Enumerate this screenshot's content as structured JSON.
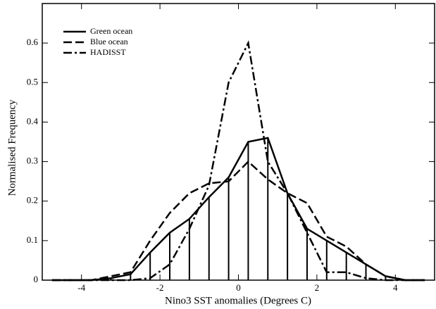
{
  "chart_data": {
    "type": "line",
    "xlabel": "Nino3 SST anomalies (Degrees C)",
    "ylabel": "Normalised Frequency",
    "x": [
      -4.75,
      -4.25,
      -3.75,
      -3.25,
      -2.75,
      -2.25,
      -1.75,
      -1.25,
      -0.75,
      -0.25,
      0.25,
      0.75,
      1.25,
      1.75,
      2.25,
      2.75,
      3.25,
      3.75,
      4.25,
      4.75
    ],
    "series": [
      {
        "name": "Green ocean",
        "color": "#000000",
        "dash": "solid",
        "stems": true,
        "values": [
          0,
          0,
          0,
          0.005,
          0.015,
          0.07,
          0.12,
          0.155,
          0.21,
          0.26,
          0.35,
          0.36,
          0.22,
          0.13,
          0.1,
          0.07,
          0.04,
          0.01,
          0,
          0
        ]
      },
      {
        "name": "Blue ocean",
        "color": "#000000",
        "dash": "dashed",
        "values": [
          0,
          0,
          0,
          0.01,
          0.02,
          0.1,
          0.17,
          0.22,
          0.245,
          0.25,
          0.3,
          0.255,
          0.22,
          0.195,
          0.11,
          0.085,
          0.04,
          0.01,
          0,
          0
        ]
      },
      {
        "name": "HADISST",
        "color": "#000000",
        "dash": "dashdot",
        "values": [
          0,
          0,
          0,
          0,
          0,
          0.005,
          0.04,
          0.13,
          0.24,
          0.5,
          0.6,
          0.3,
          0.22,
          0.12,
          0.02,
          0.02,
          0.005,
          0,
          0,
          0
        ]
      }
    ],
    "xlim": [
      -5,
      5
    ],
    "xticks": [
      -4,
      -2,
      0,
      2,
      4
    ],
    "ylim": [
      0,
      0.7
    ],
    "yticks": [
      0,
      0.1,
      0.2,
      0.3,
      0.4,
      0.5,
      0.6
    ],
    "legend": "upper left"
  }
}
